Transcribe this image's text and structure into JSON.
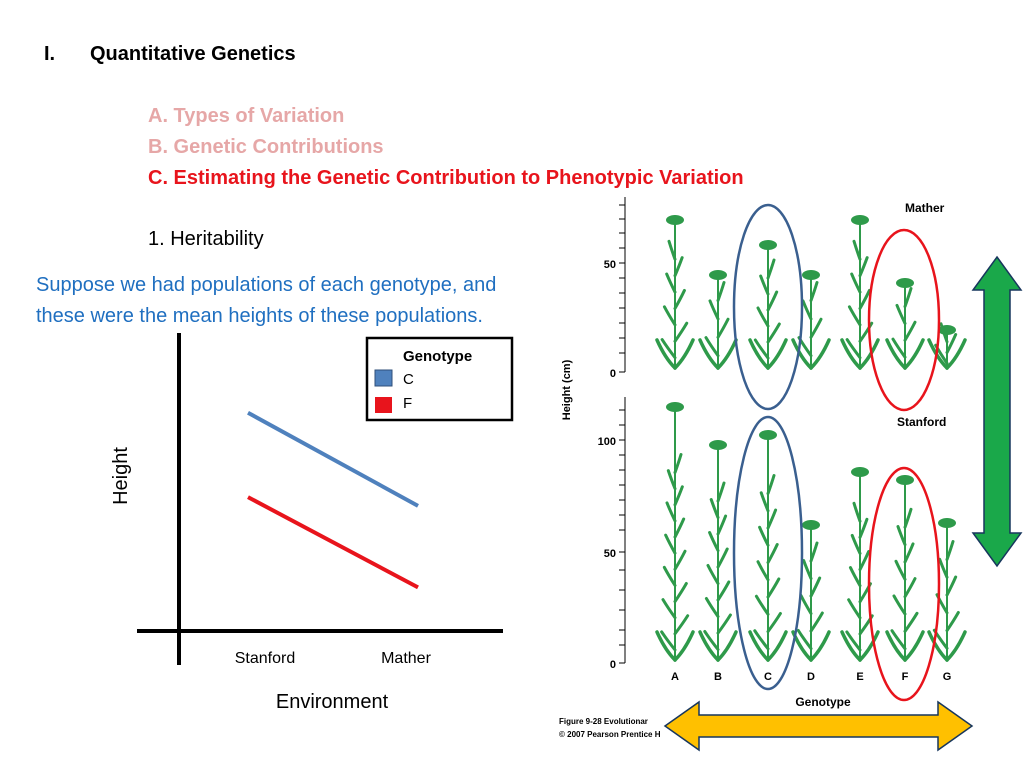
{
  "heading": {
    "number": "I.",
    "title": "Quantitative Genetics"
  },
  "subsections": [
    {
      "label": "A.  Types of Variation",
      "color": "#e6a7a7"
    },
    {
      "label": "B. Genetic Contributions",
      "color": "#e6a7a7"
    },
    {
      "label": "C. Estimating the Genetic Contribution to Phenotypic Variation",
      "color": "#e8141c"
    }
  ],
  "heritability": "1. Heritability",
  "body": {
    "line1": "Suppose we had populations of each genotype, and",
    "line2": "these were the mean heights of these populations."
  },
  "chart_data": [
    {
      "type": "line",
      "title": "",
      "xlabel": "Environment",
      "ylabel": "Height",
      "categories": [
        "Stanford",
        "Mather"
      ],
      "series": [
        {
          "name": "C",
          "color": "#4f81bd",
          "values": [
            0.75,
            0.43
          ]
        },
        {
          "name": "F",
          "color": "#e8141c",
          "values": [
            0.46,
            0.15
          ]
        }
      ],
      "ylim": [
        0,
        1
      ],
      "legend": {
        "title": "Genotype",
        "placement": "top-right"
      },
      "grid": false
    },
    {
      "type": "figure",
      "xlabel": "Genotype",
      "ylabel": "Height (cm)",
      "genotypes": [
        "A",
        "B",
        "C",
        "D",
        "E",
        "F",
        "G"
      ],
      "panels": [
        {
          "name": "Mather",
          "ticks": [
            "50",
            "0"
          ]
        },
        {
          "name": "Stanford",
          "ticks": [
            "100",
            "50",
            "0"
          ]
        }
      ],
      "caption_line1": "Figure 9-28  Evolutionar",
      "caption_line2": "© 2007 Pearson Prentice H",
      "highlight_colors": {
        "C": "#3a5f8f",
        "F": "#e8141c"
      },
      "arrow_colors": {
        "vertical": "#1aa84a",
        "horizontal": "#ffc000"
      }
    }
  ]
}
